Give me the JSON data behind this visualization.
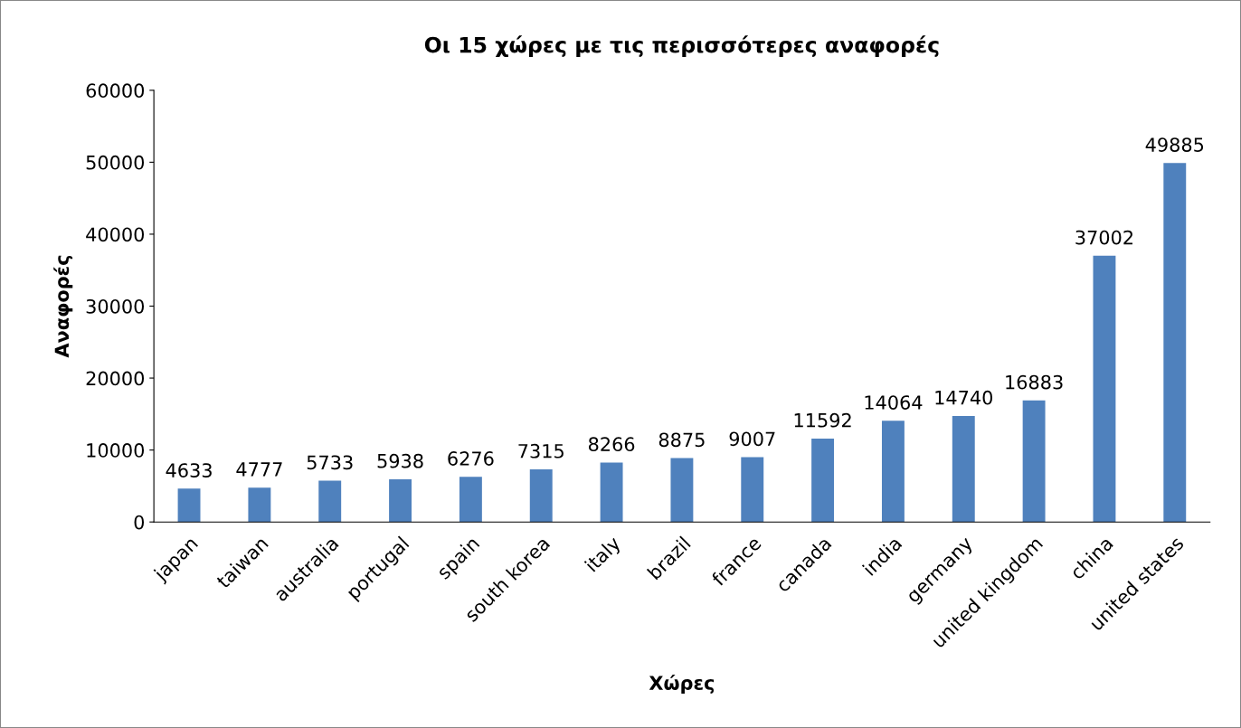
{
  "chart_data": {
    "type": "bar",
    "title": "Οι 15 χώρες με τις περισσότερες αναφορές",
    "xlabel": "Χώρες",
    "ylabel": "Αναφορές",
    "categories": [
      "japan",
      "taiwan",
      "australia",
      "portugal",
      "spain",
      "south korea",
      "italy",
      "brazil",
      "france",
      "canada",
      "india",
      "germany",
      "united kingdom",
      "china",
      "united states"
    ],
    "values": [
      4633,
      4777,
      5733,
      5938,
      6276,
      7315,
      8266,
      8875,
      9007,
      11592,
      14064,
      14740,
      16883,
      37002,
      49885
    ],
    "color": "#4f81bd",
    "ylim": [
      0,
      60000
    ],
    "yticks": [
      0,
      10000,
      20000,
      30000,
      40000,
      50000,
      60000
    ],
    "grid": false,
    "legend": false,
    "data_labels": true
  }
}
